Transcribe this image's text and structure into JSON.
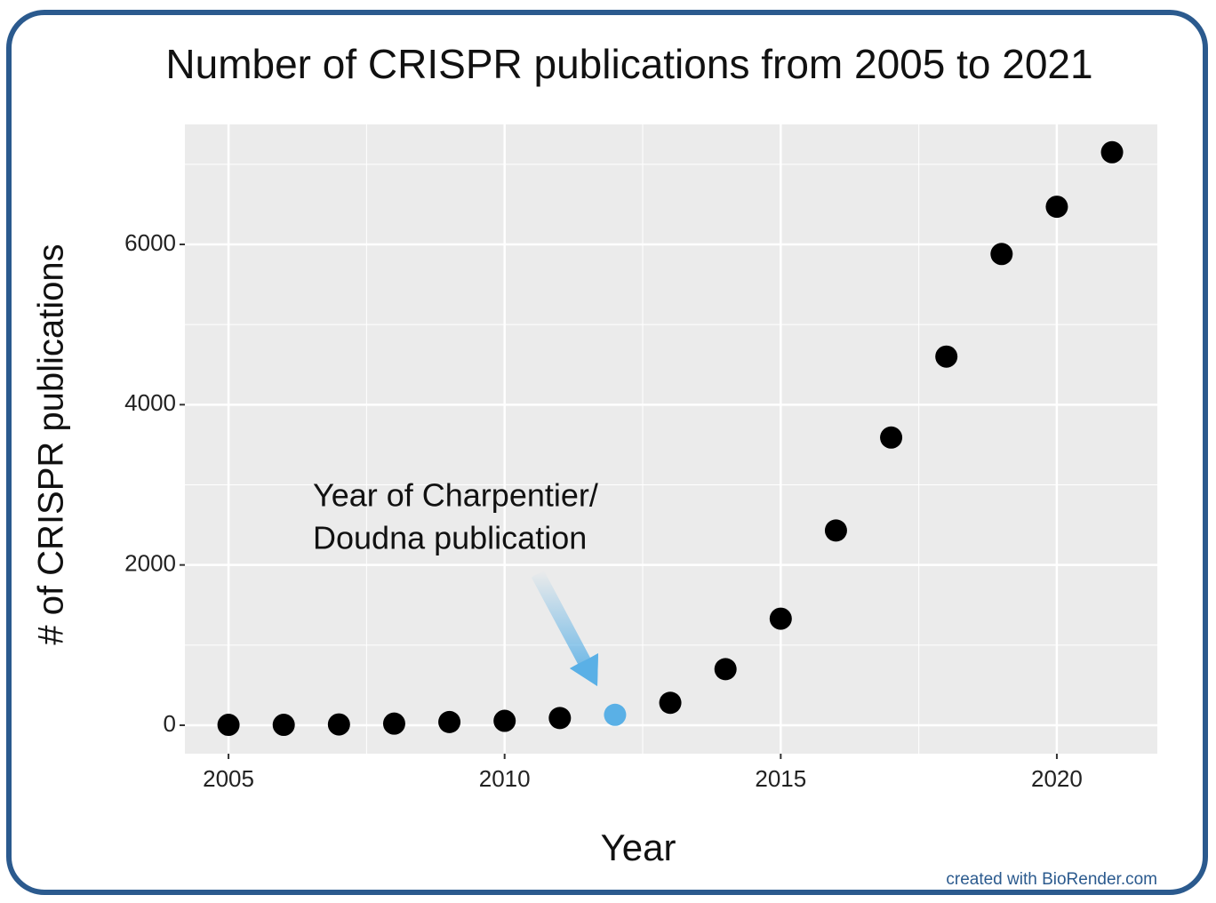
{
  "chart_data": {
    "type": "scatter",
    "title": "Number of CRISPR publications from 2005 to 2021",
    "x_label": "Year",
    "y_label": "# of CRISPR publications",
    "x": [
      2005,
      2006,
      2007,
      2008,
      2009,
      2010,
      2011,
      2012,
      2013,
      2014,
      2015,
      2016,
      2017,
      2018,
      2019,
      2020,
      2021
    ],
    "values": [
      5,
      5,
      10,
      20,
      40,
      55,
      90,
      130,
      280,
      700,
      1330,
      2430,
      3590,
      4600,
      5880,
      6470,
      7150
    ],
    "colors": [
      "#000000",
      "#000000",
      "#000000",
      "#000000",
      "#000000",
      "#000000",
      "#000000",
      "#5ab0e6",
      "#000000",
      "#000000",
      "#000000",
      "#000000",
      "#000000",
      "#000000",
      "#000000",
      "#000000",
      "#000000"
    ],
    "xlim": [
      2004.21,
      2021.82
    ],
    "ylim": [
      -355,
      7497
    ],
    "xticks": [
      2005,
      2010,
      2015,
      2020
    ],
    "yticks": [
      0,
      2000,
      4000,
      6000
    ],
    "minor_xticks": [
      2007.5,
      2012.5,
      2017.5
    ],
    "minor_yticks": [
      1000,
      3000,
      5000,
      7000
    ],
    "grid": true,
    "annotation": [
      "Year of Charpentier/",
      "Doudna publication"
    ],
    "credit": "created with BioRender.com"
  }
}
